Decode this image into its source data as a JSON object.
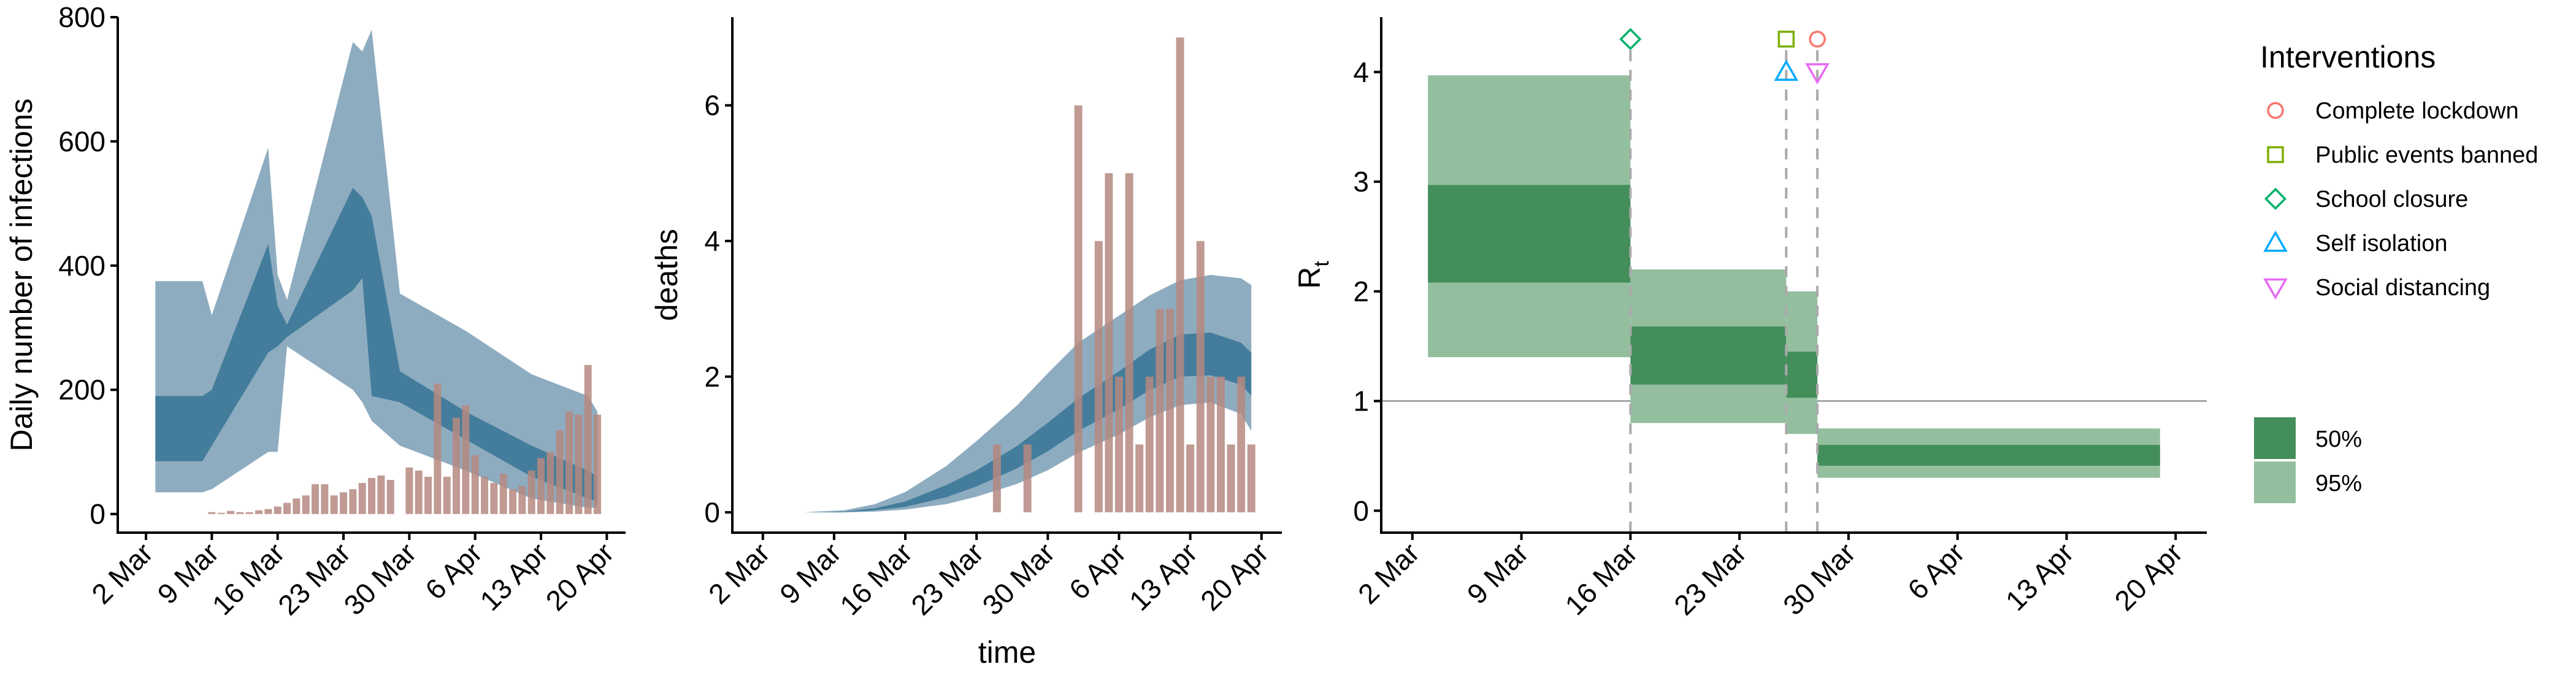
{
  "colors": {
    "band95_blue": "#8eacc0",
    "band50_blue": "#447d9c",
    "bar_brown": "#b58880",
    "rt95_green": "#94bf9f",
    "rt50_green": "#448e5c",
    "reference_line": "#a6a6a6",
    "dashed_line": "#aaaaaa",
    "axis": "#000000"
  },
  "chart_data": [
    {
      "type": "area",
      "ylabel": "Daily number of infections",
      "xlabel": "",
      "x_tick_labels": [
        "2 Mar",
        "9 Mar",
        "16 Mar",
        "23 Mar",
        "30 Mar",
        "6 Apr",
        "13 Apr",
        "20 Apr"
      ],
      "x_ticks": [
        "2020-03-02",
        "2020-03-09",
        "2020-03-16",
        "2020-03-23",
        "2020-03-30",
        "2020-04-06",
        "2020-04-13",
        "2020-04-20"
      ],
      "xlim": [
        "2020-02-28",
        "2020-04-22"
      ],
      "y_ticks": [
        0,
        200,
        400,
        600,
        800
      ],
      "ylim": [
        -30,
        800
      ],
      "grid": false,
      "series": [
        {
          "band": "95%",
          "x": [
            "2020-03-03",
            "2020-03-08",
            "2020-03-09",
            "2020-03-15",
            "2020-03-16",
            "2020-03-17",
            "2020-03-24",
            "2020-03-25",
            "2020-03-26",
            "2020-03-29",
            "2020-04-05",
            "2020-04-12",
            "2020-04-18",
            "2020-04-19"
          ],
          "upper": [
            375,
            375,
            320,
            590,
            385,
            345,
            760,
            745,
            780,
            355,
            295,
            225,
            190,
            165
          ],
          "lower": [
            35,
            35,
            40,
            100,
            100,
            270,
            200,
            180,
            150,
            110,
            70,
            25,
            10,
            10
          ]
        },
        {
          "band": "50%",
          "x": [
            "2020-03-03",
            "2020-03-08",
            "2020-03-09",
            "2020-03-15",
            "2020-03-16",
            "2020-03-17",
            "2020-03-24",
            "2020-03-25",
            "2020-03-26",
            "2020-03-29",
            "2020-04-05",
            "2020-04-12",
            "2020-04-18",
            "2020-04-19"
          ],
          "upper": [
            190,
            190,
            200,
            435,
            335,
            305,
            525,
            510,
            480,
            230,
            165,
            110,
            70,
            60
          ],
          "lower": [
            85,
            85,
            110,
            260,
            270,
            285,
            360,
            380,
            190,
            180,
            120,
            60,
            25,
            20
          ]
        }
      ],
      "bars": {
        "x": [
          "2020-03-09",
          "2020-03-10",
          "2020-03-11",
          "2020-03-12",
          "2020-03-13",
          "2020-03-14",
          "2020-03-15",
          "2020-03-16",
          "2020-03-17",
          "2020-03-18",
          "2020-03-19",
          "2020-03-20",
          "2020-03-21",
          "2020-03-22",
          "2020-03-23",
          "2020-03-24",
          "2020-03-25",
          "2020-03-26",
          "2020-03-27",
          "2020-03-28",
          "2020-03-29",
          "2020-03-30",
          "2020-03-31",
          "2020-04-01",
          "2020-04-02",
          "2020-04-03",
          "2020-04-04",
          "2020-04-05",
          "2020-04-06",
          "2020-04-07",
          "2020-04-08",
          "2020-04-09",
          "2020-04-10",
          "2020-04-11",
          "2020-04-12",
          "2020-04-13",
          "2020-04-14",
          "2020-04-15",
          "2020-04-16",
          "2020-04-17",
          "2020-04-18",
          "2020-04-19"
        ],
        "values": [
          3,
          2,
          5,
          3,
          3,
          6,
          8,
          12,
          18,
          25,
          30,
          48,
          48,
          30,
          35,
          40,
          50,
          58,
          62,
          55,
          0,
          75,
          70,
          60,
          210,
          60,
          155,
          175,
          95,
          60,
          50,
          65,
          40,
          45,
          70,
          90,
          100,
          135,
          165,
          160,
          240,
          160
        ]
      }
    },
    {
      "type": "area",
      "ylabel": "deaths",
      "xlabel": "time",
      "x_tick_labels": [
        "2 Mar",
        "9 Mar",
        "16 Mar",
        "23 Mar",
        "30 Mar",
        "6 Apr",
        "13 Apr",
        "20 Apr"
      ],
      "x_ticks": [
        "2020-03-02",
        "2020-03-09",
        "2020-03-16",
        "2020-03-23",
        "2020-03-30",
        "2020-04-06",
        "2020-04-13",
        "2020-04-20"
      ],
      "xlim": [
        "2020-02-28",
        "2020-04-22"
      ],
      "y_ticks": [
        0,
        2,
        4,
        6
      ],
      "ylim": [
        -0.3,
        7.3
      ],
      "grid": false,
      "series": [
        {
          "band": "95%",
          "x": [
            "2020-03-06",
            "2020-03-10",
            "2020-03-13",
            "2020-03-16",
            "2020-03-20",
            "2020-03-23",
            "2020-03-27",
            "2020-03-30",
            "2020-04-02",
            "2020-04-06",
            "2020-04-09",
            "2020-04-12",
            "2020-04-15",
            "2020-04-18",
            "2020-04-19"
          ],
          "upper": [
            0,
            0.03,
            0.12,
            0.3,
            0.68,
            1.05,
            1.58,
            2.05,
            2.5,
            2.9,
            3.2,
            3.42,
            3.5,
            3.45,
            3.35
          ],
          "lower": [
            0,
            0,
            0.01,
            0.04,
            0.12,
            0.23,
            0.42,
            0.62,
            0.88,
            1.15,
            1.4,
            1.58,
            1.62,
            1.45,
            1.2
          ]
        },
        {
          "band": "50%",
          "x": [
            "2020-03-06",
            "2020-03-10",
            "2020-03-13",
            "2020-03-16",
            "2020-03-20",
            "2020-03-23",
            "2020-03-27",
            "2020-03-30",
            "2020-04-02",
            "2020-04-06",
            "2020-04-09",
            "2020-04-12",
            "2020-04-15",
            "2020-04-18",
            "2020-04-19"
          ],
          "upper": [
            0,
            0.01,
            0.06,
            0.16,
            0.4,
            0.62,
            0.98,
            1.32,
            1.68,
            2.08,
            2.4,
            2.62,
            2.65,
            2.5,
            2.35
          ],
          "lower": [
            0,
            0,
            0.03,
            0.08,
            0.22,
            0.38,
            0.65,
            0.9,
            1.2,
            1.52,
            1.8,
            2.0,
            2.02,
            1.88,
            1.72
          ]
        }
      ],
      "bars": {
        "x": [
          "2020-03-25",
          "2020-03-28",
          "2020-04-02",
          "2020-04-04",
          "2020-04-05",
          "2020-04-06",
          "2020-04-07",
          "2020-04-08",
          "2020-04-09",
          "2020-04-10",
          "2020-04-11",
          "2020-04-12",
          "2020-04-13",
          "2020-04-14",
          "2020-04-15",
          "2020-04-16",
          "2020-04-17",
          "2020-04-18",
          "2020-04-19"
        ],
        "values": [
          1,
          1,
          6,
          4,
          5,
          2,
          5,
          1,
          2,
          3,
          3,
          7,
          1,
          4,
          2,
          2,
          1,
          2,
          1
        ]
      }
    },
    {
      "type": "area",
      "ylabel": "R",
      "ylabel_subscript": "t",
      "xlabel": "",
      "x_tick_labels": [
        "2 Mar",
        "9 Mar",
        "16 Mar",
        "23 Mar",
        "30 Mar",
        "6 Apr",
        "13 Apr",
        "20 Apr"
      ],
      "x_ticks": [
        "2020-03-02",
        "2020-03-09",
        "2020-03-16",
        "2020-03-23",
        "2020-03-30",
        "2020-04-06",
        "2020-04-13",
        "2020-04-20"
      ],
      "xlim": [
        "2020-02-29",
        "2020-04-22"
      ],
      "y_ticks": [
        0,
        1,
        2,
        3,
        4
      ],
      "ylim": [
        -0.2,
        4.5
      ],
      "grid": false,
      "reference_line": 1,
      "steps": [
        {
          "x_start": "2020-03-03",
          "x_end": "2020-03-16",
          "lower95": 1.4,
          "upper95": 3.97,
          "lower50": 2.08,
          "upper50": 2.97
        },
        {
          "x_start": "2020-03-16",
          "x_end": "2020-03-26",
          "lower95": 0.8,
          "upper95": 2.2,
          "lower50": 1.15,
          "upper50": 1.68
        },
        {
          "x_start": "2020-03-26",
          "x_end": "2020-03-28",
          "lower95": 0.7,
          "upper95": 2.0,
          "lower50": 1.03,
          "upper50": 1.45
        },
        {
          "x_start": "2020-03-28",
          "x_end": "2020-04-19",
          "lower95": 0.3,
          "upper95": 0.75,
          "lower50": 0.41,
          "upper50": 0.6
        }
      ],
      "interventions": [
        {
          "name": "School closure",
          "date": "2020-03-16",
          "marker": "diamond",
          "color": "#00b16a",
          "y": 4.3
        },
        {
          "name": "Public events banned",
          "date": "2020-03-26",
          "marker": "square",
          "color": "#7cae00",
          "y": 4.3
        },
        {
          "name": "Self isolation",
          "date": "2020-03-26",
          "marker": "triangle-up",
          "color": "#00a9ff",
          "y": 4.0
        },
        {
          "name": "Complete lockdown",
          "date": "2020-03-28",
          "marker": "circle",
          "color": "#f8766d",
          "y": 4.3
        },
        {
          "name": "Social distancing",
          "date": "2020-03-28",
          "marker": "triangle-down",
          "color": "#e76bf3",
          "y": 4.0
        }
      ]
    }
  ],
  "legend": {
    "title": "Interventions",
    "items": [
      {
        "label": "Complete lockdown",
        "marker": "circle",
        "color": "#f8766d"
      },
      {
        "label": "Public events banned",
        "marker": "square",
        "color": "#7cae00"
      },
      {
        "label": "School closure",
        "marker": "diamond",
        "color": "#00b16a"
      },
      {
        "label": "Self isolation",
        "marker": "triangle-up",
        "color": "#00a9ff"
      },
      {
        "label": "Social distancing",
        "marker": "triangle-down",
        "color": "#e76bf3"
      }
    ],
    "bands": [
      {
        "label": "50%",
        "color": "#448e5c"
      },
      {
        "label": "95%",
        "color": "#94bf9f"
      }
    ]
  }
}
